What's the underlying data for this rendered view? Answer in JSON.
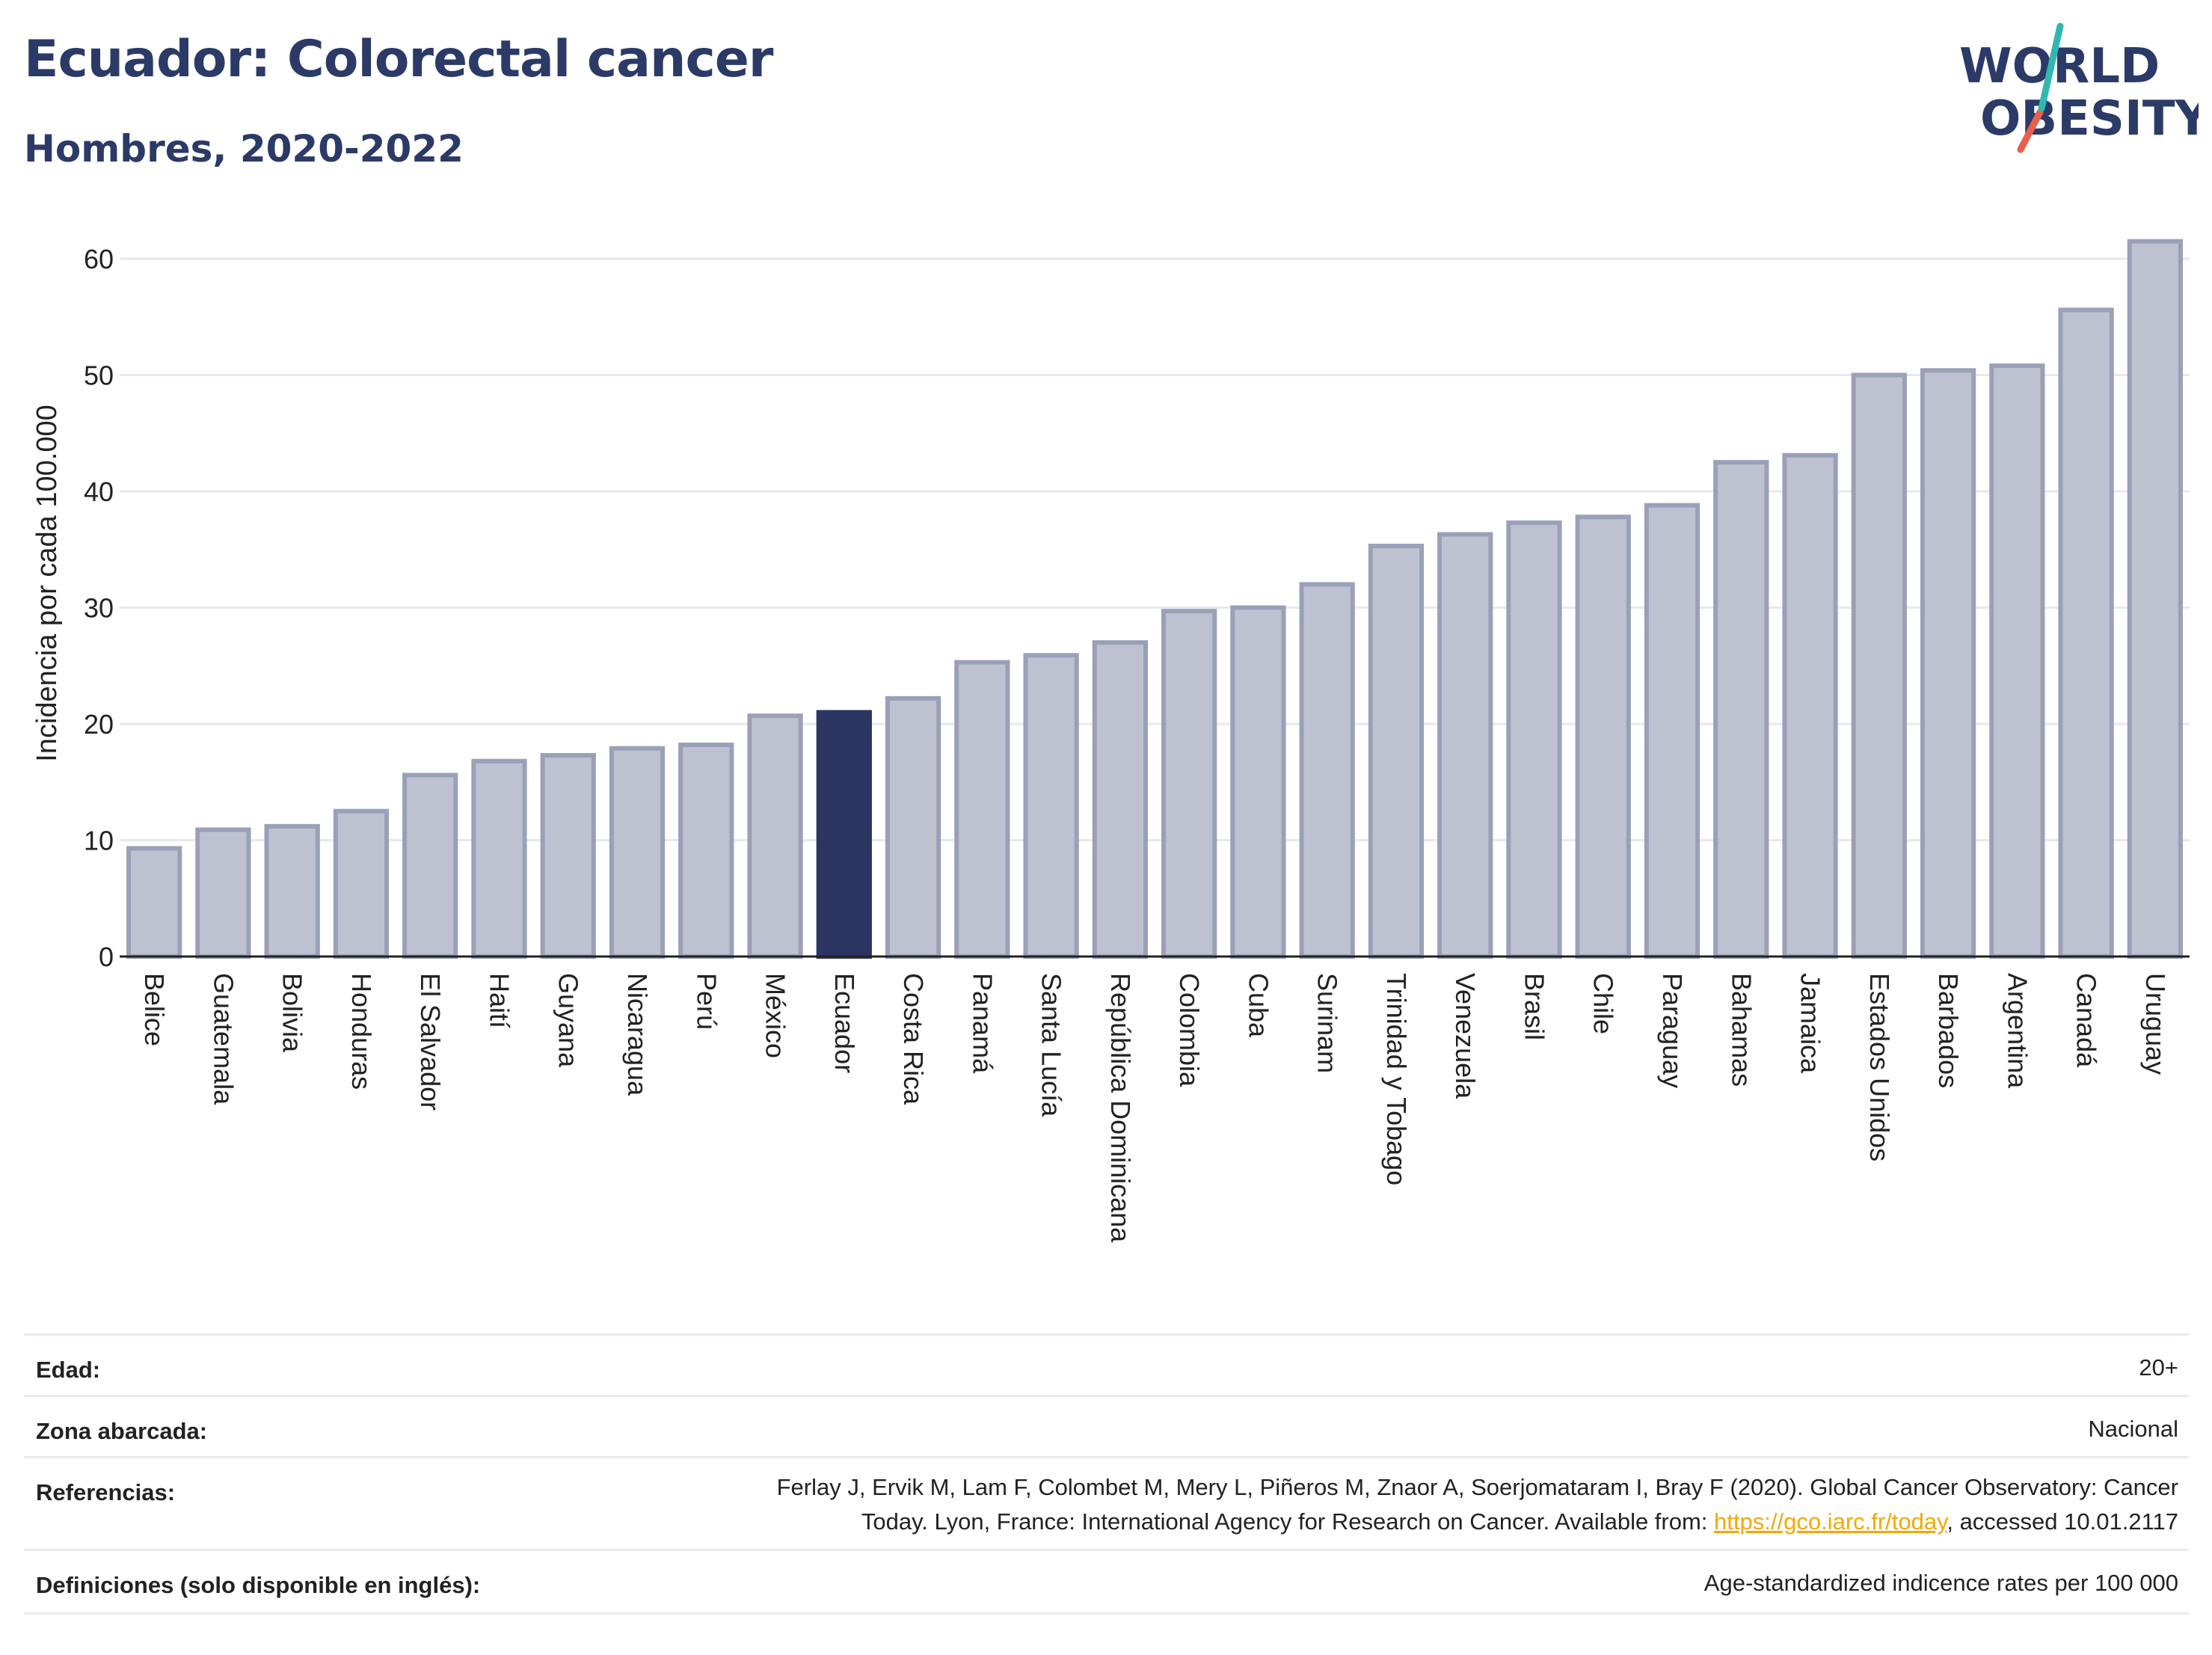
{
  "header": {
    "title": "Ecuador: Colorectal cancer",
    "subtitle": "Hombres, 2020-2022"
  },
  "logo": {
    "line1": "WORLD",
    "line2": "OBESITY"
  },
  "colors": {
    "bar": "#bec2d0",
    "bar_border": "#9aa0b8",
    "highlight": "#2b3561",
    "text": "#2b3a67",
    "grid": "#e6e8ee"
  },
  "chart_data": {
    "type": "bar",
    "ylabel": "Incidencia por cada 100.000",
    "ylim": [
      0,
      65
    ],
    "yticks": [
      0,
      10,
      20,
      30,
      40,
      50,
      60
    ],
    "highlight": "Ecuador",
    "grid": true,
    "categories": [
      "Belice",
      "Guatemala",
      "Bolivia",
      "Honduras",
      "El Salvador",
      "Haití",
      "Guyana",
      "Nicaragua",
      "Perú",
      "México",
      "Ecuador",
      "Costa Rica",
      "Panamá",
      "Santa Lucía",
      "República Dominicana",
      "Colombia",
      "Cuba",
      "Surinam",
      "Trinidad y Tobago",
      "Venezuela",
      "Brasil",
      "Chile",
      "Paraguay",
      "Bahamas",
      "Jamaica",
      "Estados Unidos",
      "Barbados",
      "Argentina",
      "Canadá",
      "Uruguay"
    ],
    "values": [
      9.3,
      10.9,
      11.2,
      12.5,
      15.6,
      16.8,
      17.3,
      17.9,
      18.2,
      20.7,
      21.0,
      22.2,
      25.3,
      25.9,
      27.0,
      29.7,
      30.0,
      32.0,
      35.3,
      36.3,
      37.3,
      37.8,
      38.8,
      42.5,
      43.1,
      50.0,
      50.4,
      50.8,
      55.6,
      61.5
    ]
  },
  "info": {
    "age_label": "Edad:",
    "age_value": "20+",
    "area_label": "Zona abarcada:",
    "area_value": "Nacional",
    "refs_label": "Referencias:",
    "refs_line1": "Ferlay J, Ervik M, Lam F, Colombet M, Mery L, Piñeros M, Znaor A, Soerjomataram I, Bray F (2020). Global Cancer Observatory: Cancer",
    "refs_line2_pre": "Today. Lyon, France: International Agency for Research on Cancer. Available from: ",
    "refs_link": "https://gco.iarc.fr/today",
    "refs_line2_post": ", accessed 10.01.2117",
    "defs_label": "Definiciones (solo disponible en inglés):",
    "defs_value": "Age-standardized indicence rates per 100 000"
  }
}
